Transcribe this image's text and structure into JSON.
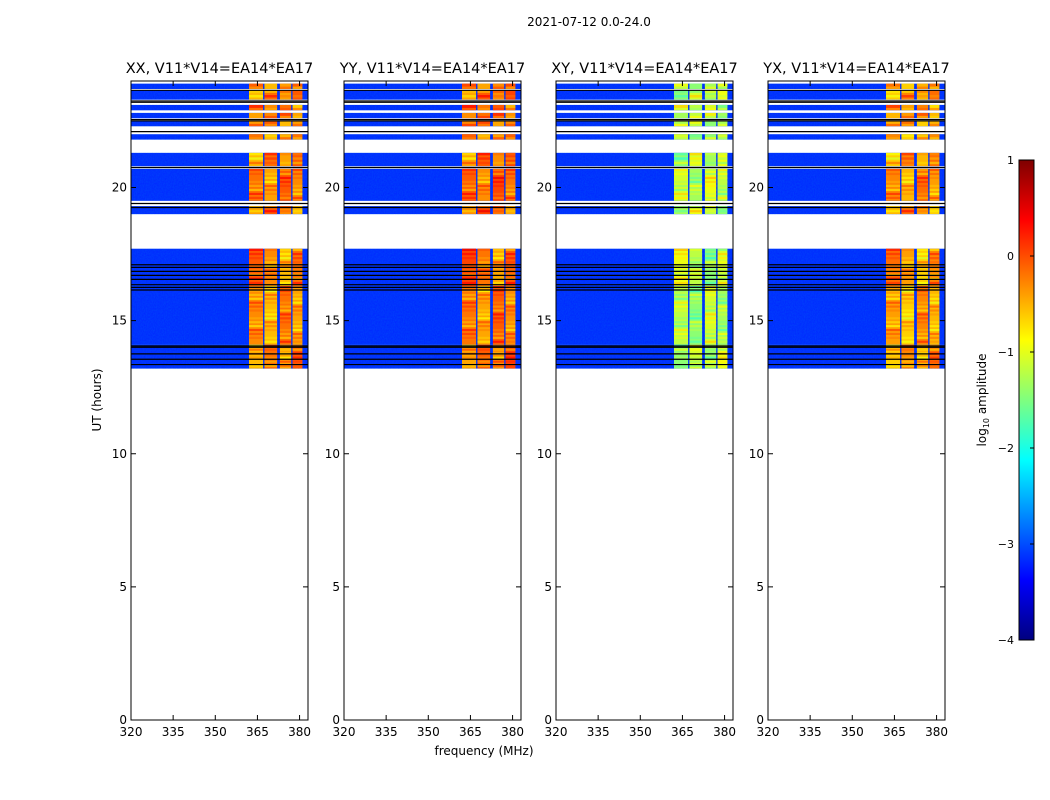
{
  "figure": {
    "suptitle": "2021-07-12 0.0-24.0"
  },
  "chart_data": {
    "type": "heatmap",
    "subtype": "dynamic spectrum (waterfall), 4 polarization panels sharing axes",
    "panels": [
      {
        "id": "XX",
        "title": "XX, V11*V14=EA14*EA17"
      },
      {
        "id": "YY",
        "title": "YY, V11*V14=EA14*EA17"
      },
      {
        "id": "XY",
        "title": "XY, V11*V14=EA14*EA17"
      },
      {
        "id": "YX",
        "title": "YX, V11*V14=EA14*EA17"
      }
    ],
    "xlabel": "frequency (MHz)",
    "ylabel": "UT (hours)",
    "xlim": [
      320,
      383
    ],
    "ylim": [
      0,
      24
    ],
    "xticks": [
      320,
      335,
      350,
      365,
      380
    ],
    "xtick_labels": [
      "320",
      "335",
      "350",
      "365",
      "380"
    ],
    "yticks": [
      0,
      5,
      10,
      15,
      20
    ],
    "ytick_labels": [
      "0",
      "5",
      "10",
      "15",
      "20"
    ],
    "colorbar": {
      "label": "log10 amplitude",
      "label_main": "log",
      "label_sub": "10",
      "label_tail": " amplitude",
      "range": [
        -4,
        1
      ],
      "ticks": [
        1,
        0,
        -1,
        -2,
        -3,
        -4
      ],
      "tick_labels": [
        "1",
        "0",
        "−1",
        "−2",
        "−3",
        "−4"
      ],
      "colormap": "jet"
    },
    "observed_time_range_hours": [
      13.2,
      23.9
    ],
    "data_blocks_ut_hours": [
      [
        13.2,
        14.1
      ],
      [
        14.1,
        16.3
      ],
      [
        16.3,
        17.7
      ],
      [
        19.0,
        19.3
      ],
      [
        19.5,
        20.7
      ],
      [
        20.8,
        21.3
      ],
      [
        21.8,
        22.0
      ],
      [
        22.3,
        22.5
      ],
      [
        22.6,
        22.8
      ],
      [
        22.9,
        23.1
      ],
      [
        23.3,
        23.65
      ],
      [
        23.7,
        23.9
      ]
    ],
    "gap_lines_ut_hours": [
      13.35,
      13.55,
      13.75,
      14.0,
      14.05,
      16.15,
      16.25,
      16.35,
      16.55,
      16.7,
      16.85,
      17.0,
      17.1,
      19.25,
      19.4,
      20.75,
      22.1,
      22.5,
      22.55,
      23.2,
      23.25,
      23.65
    ],
    "broadband_level_log10": -3.2,
    "bright_channels_mhz": [
      [
        362,
        367
      ],
      [
        367.5,
        372
      ],
      [
        373,
        377
      ],
      [
        377.5,
        381
      ]
    ],
    "bright_channel_level_log10": {
      "XX": -0.3,
      "YY": -0.2,
      "XY": -1.2,
      "YX": -0.4
    }
  }
}
